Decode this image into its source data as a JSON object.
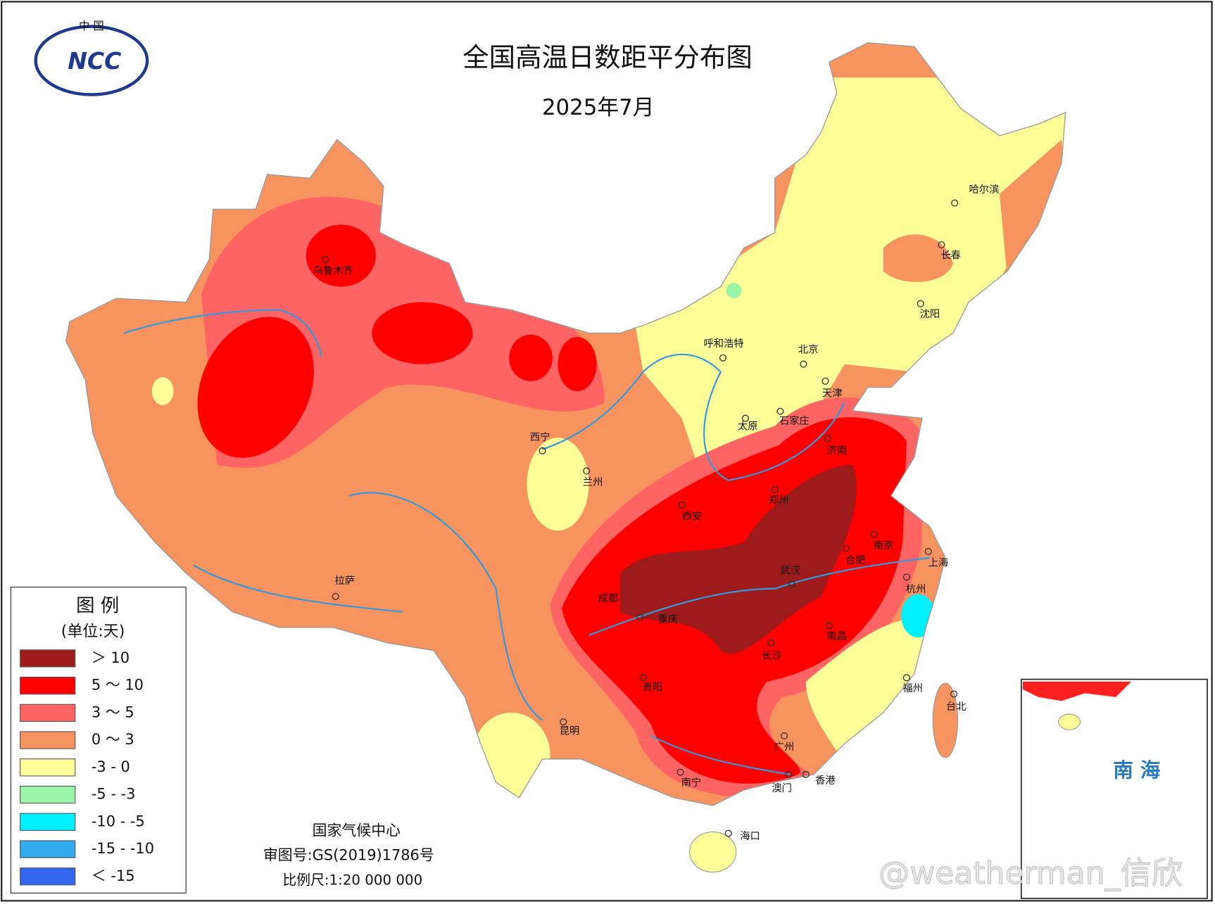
{
  "logo": {
    "top": "中 国",
    "text": "NCC"
  },
  "header": {
    "title": "全国高温日数距平分布图",
    "subtitle": "2025年7月"
  },
  "legend": {
    "title": "图 例",
    "unit": "(单位:天)",
    "items": [
      {
        "label": "＞ 10",
        "color": "#9e1b1b"
      },
      {
        "label": "5 ～ 10",
        "color": "#ff0000"
      },
      {
        "label": "3 ～ 5",
        "color": "#ff6464"
      },
      {
        "label": "0 ～ 3",
        "color": "#f7935f"
      },
      {
        "label": "-3 - 0",
        "color": "#ffff99"
      },
      {
        "label": "-5 - -3",
        "color": "#99f5a8"
      },
      {
        "label": "-10 - -5",
        "color": "#00f0ff"
      },
      {
        "label": "-15 - -10",
        "color": "#33aaee"
      },
      {
        "label": "＜ -15",
        "color": "#3366ee"
      }
    ]
  },
  "cities": [
    "乌鲁木齐",
    "西宁",
    "兰州",
    "拉萨",
    "呼和浩特",
    "北京",
    "天津",
    "太原",
    "石家庄",
    "济南",
    "郑州",
    "西安",
    "南京",
    "合肥",
    "上海",
    "武汉",
    "杭州",
    "成都",
    "重庆",
    "南昌",
    "长沙",
    "贵阳",
    "福州",
    "台北",
    "昆明",
    "广州",
    "南宁",
    "澳门",
    "香港",
    "海口",
    "哈尔滨",
    "长春",
    "沈阳"
  ],
  "inset": {
    "label": "南 海"
  },
  "footer": {
    "org": "国家气候中心",
    "approval": "审图号:GS(2019)1786号",
    "scale": "比例尺:1:20 000 000"
  },
  "watermark": "@weatherman_信欣"
}
